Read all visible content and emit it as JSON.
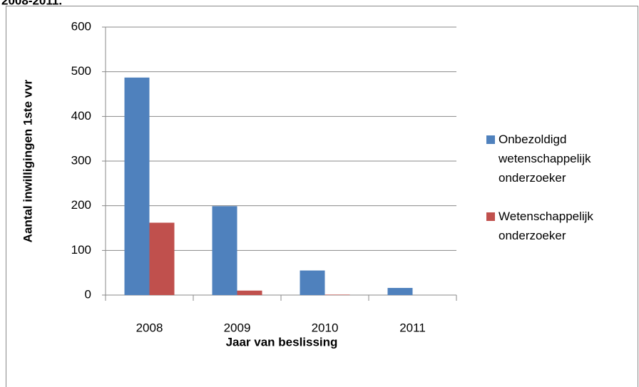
{
  "chart_data": {
    "type": "bar",
    "title": "2008-2011.",
    "categories": [
      "2008",
      "2009",
      "2010",
      "2011"
    ],
    "series": [
      {
        "name": "Onbezoldigd wetenschappelijk onderzoeker",
        "color": "#4f81bd",
        "values": [
          487,
          199,
          55,
          16
        ]
      },
      {
        "name": "Wetenschappelijk onderzoeker",
        "color": "#c0504d",
        "values": [
          162,
          10,
          1,
          0
        ]
      }
    ],
    "ylim": [
      0,
      600
    ],
    "yticks": [
      0,
      100,
      200,
      300,
      400,
      500,
      600
    ],
    "grid": true,
    "ylabel": "Aantal inwilligingen  1ste vvr",
    "xlabel": "Jaar van beslissing",
    "legend": "right"
  }
}
